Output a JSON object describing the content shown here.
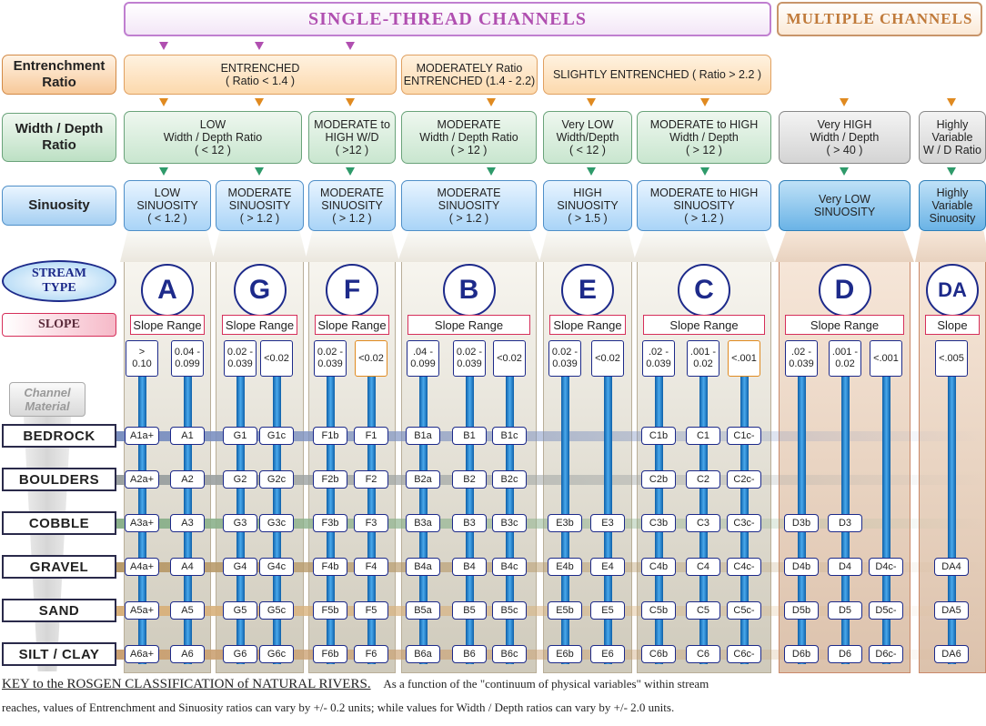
{
  "header": {
    "single": "SINGLE-THREAD  CHANNELS",
    "multiple": "MULTIPLE CHANNELS"
  },
  "row_labels": {
    "entrenchment": "Entrenchment\nRatio",
    "width_depth": "Width / Depth\nRatio",
    "sinuosity": "Sinuosity",
    "stream_type": "STREAM\nTYPE",
    "slope": "SLOPE",
    "channel_material": "Channel\nMaterial"
  },
  "entrenchment": [
    {
      "text": "ENTRENCHED\n( Ratio  < 1.4 )"
    },
    {
      "text": "MODERATELY    Ratio\nENTRENCHED (1.4 - 2.2)"
    },
    {
      "text": "SLIGHTLY  ENTRENCHED ( Ratio > 2.2 )"
    }
  ],
  "width_depth": [
    {
      "text": "LOW\nWidth / Depth Ratio\n( < 12 )"
    },
    {
      "text": "MODERATE to\nHIGH  W/D\n( >12 )"
    },
    {
      "text": "MODERATE\nWidth / Depth Ratio\n( > 12 )"
    },
    {
      "text": "Very LOW\nWidth/Depth\n( < 12 )"
    },
    {
      "text": "MODERATE to HIGH\nWidth / Depth\n( > 12 )"
    },
    {
      "text": "Very HIGH\nWidth / Depth\n( > 40 )"
    },
    {
      "text": "Highly\nVariable\nW / D Ratio"
    }
  ],
  "sinuosity": [
    {
      "text": "LOW\nSINUOSITY\n( < 1.2 )"
    },
    {
      "text": "MODERATE\nSINUOSITY\n( > 1.2 )"
    },
    {
      "text": "MODERATE\nSINUOSITY\n( > 1.2 )"
    },
    {
      "text": "MODERATE\nSINUOSITY\n( > 1.2 )"
    },
    {
      "text": "HIGH\nSINUOSITY\n( > 1.5 )"
    },
    {
      "text": "MODERATE to HIGH\nSINUOSITY\n( > 1.2 )"
    },
    {
      "text": "Very LOW\nSINUOSITY"
    },
    {
      "text": "Highly\nVariable\nSinuosity"
    }
  ],
  "materials": [
    "BEDROCK",
    "BOULDERS",
    "COBBLE",
    "GRAVEL",
    "SAND",
    "SILT / CLAY"
  ],
  "stream_types": [
    {
      "letter": "A",
      "slope_label": "Slope Range",
      "slopes": [
        ">\n0.10",
        "0.04 -\n0.099"
      ],
      "cells": [
        [
          "A1a+",
          "A1"
        ],
        [
          "A2a+",
          "A2"
        ],
        [
          "A3a+",
          "A3"
        ],
        [
          "A4a+",
          "A4"
        ],
        [
          "A5a+",
          "A5"
        ],
        [
          "A6a+",
          "A6"
        ]
      ]
    },
    {
      "letter": "G",
      "slope_label": "Slope Range",
      "slopes": [
        "0.02 -\n0.039",
        "<0.02"
      ],
      "cells": [
        [
          "G1",
          "G1c"
        ],
        [
          "G2",
          "G2c"
        ],
        [
          "G3",
          "G3c"
        ],
        [
          "G4",
          "G4c"
        ],
        [
          "G5",
          "G5c"
        ],
        [
          "G6",
          "G6c"
        ]
      ]
    },
    {
      "letter": "F",
      "slope_label": "Slope Range",
      "slopes": [
        "0.02 -\n0.039",
        "<0.02"
      ],
      "cells": [
        [
          "F1b",
          "F1"
        ],
        [
          "F2b",
          "F2"
        ],
        [
          "F3b",
          "F3"
        ],
        [
          "F4b",
          "F4"
        ],
        [
          "F5b",
          "F5"
        ],
        [
          "F6b",
          "F6"
        ]
      ]
    },
    {
      "letter": "B",
      "slope_label": "Slope Range",
      "slopes": [
        ".04 -\n0.099",
        "0.02 -\n0.039",
        "<0.02"
      ],
      "cells": [
        [
          "B1a",
          "B1",
          "B1c"
        ],
        [
          "B2a",
          "B2",
          "B2c"
        ],
        [
          "B3a",
          "B3",
          "B3c"
        ],
        [
          "B4a",
          "B4",
          "B4c"
        ],
        [
          "B5a",
          "B5",
          "B5c"
        ],
        [
          "B6a",
          "B6",
          "B6c"
        ]
      ]
    },
    {
      "letter": "E",
      "slope_label": "Slope Range",
      "slopes": [
        "0.02 -\n0.039",
        "<0.02"
      ],
      "cells": [
        [
          "",
          ""
        ],
        [
          "",
          ""
        ],
        [
          "E3b",
          "E3"
        ],
        [
          "E4b",
          "E4"
        ],
        [
          "E5b",
          "E5"
        ],
        [
          "E6b",
          "E6"
        ]
      ]
    },
    {
      "letter": "C",
      "slope_label": "Slope Range",
      "slopes": [
        ".02 -\n0.039",
        ".001 -\n0.02",
        "<.001"
      ],
      "cells": [
        [
          "C1b",
          "C1",
          "C1c-"
        ],
        [
          "C2b",
          "C2",
          "C2c-"
        ],
        [
          "C3b",
          "C3",
          "C3c-"
        ],
        [
          "C4b",
          "C4",
          "C4c-"
        ],
        [
          "C5b",
          "C5",
          "C5c-"
        ],
        [
          "C6b",
          "C6",
          "C6c-"
        ]
      ]
    },
    {
      "letter": "D",
      "slope_label": "Slope Range",
      "slopes": [
        ".02 -\n0.039",
        ".001 -\n0.02",
        "<.001"
      ],
      "cells": [
        [
          "",
          "",
          ""
        ],
        [
          "",
          "",
          ""
        ],
        [
          "D3b",
          "D3",
          ""
        ],
        [
          "D4b",
          "D4",
          "D4c-"
        ],
        [
          "D5b",
          "D5",
          "D5c-"
        ],
        [
          "D6b",
          "D6",
          "D6c-"
        ]
      ]
    },
    {
      "letter": "DA",
      "slope_label": "Slope",
      "slopes": [
        "<.005"
      ],
      "cells": [
        [
          ""
        ],
        [
          ""
        ],
        [
          ""
        ],
        [
          "DA4"
        ],
        [
          "DA5"
        ],
        [
          "DA6"
        ]
      ]
    }
  ],
  "footer": {
    "key": "KEY to the ROSGEN CLASSIFICATION of NATURAL RIVERS.",
    "line1": "As a function of the \"continuum of physical variables\" within stream",
    "line2": "reaches, values of Entrenchment and Sinuosity ratios can vary by +/- 0.2 units; while values for Width / Depth ratios can vary by +/- 2.0 units."
  },
  "colors": {
    "stream_letter": "#1d2a8a",
    "slope_border": "#d62f5a",
    "single_header": "#b04fb0",
    "multi_header": "#c07a3a"
  }
}
